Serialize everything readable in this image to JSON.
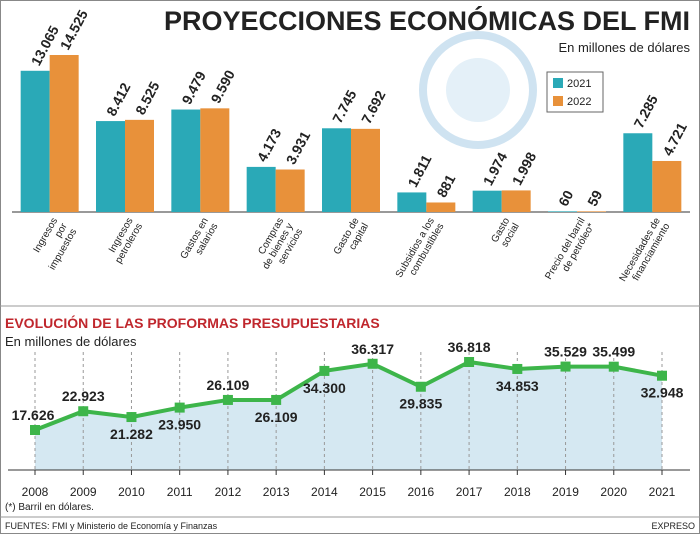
{
  "chart_data": [
    {
      "type": "bar",
      "title": "PROYECCIONES ECONÓMICAS DEL FMI",
      "subtitle": "En millones de dólares",
      "categories": [
        "Ingresos\npor\nimpuestos",
        "Ingresos\npetroleros",
        "Gastos en\nsalarios",
        "Compras\nde bienes y\nservicios",
        "Gasto de\ncapital",
        "Subsidios a los\ncombustibles",
        "Gasto\nsocial",
        "Precio del barril\nde petróleo*",
        "Necesidades de\nfinanciamiento"
      ],
      "series": [
        {
          "name": "2021",
          "color": "#2aa9b7",
          "values": [
            13065,
            8412,
            9479,
            4173,
            7745,
            1811,
            1974,
            60,
            7285
          ],
          "value_labels": [
            "13.065",
            "8.412",
            "9.479",
            "4.173",
            "7.745",
            "1.811",
            "1.974",
            "60",
            "7.285"
          ]
        },
        {
          "name": "2022",
          "color": "#e8913a",
          "values": [
            14525,
            8525,
            9590,
            3931,
            7692,
            881,
            1998,
            59,
            4721
          ],
          "value_labels": [
            "14.525",
            "8.525",
            "9.590",
            "3.931",
            "7.692",
            "881",
            "1.998",
            "59",
            "4.721"
          ]
        }
      ],
      "legend": "upper right"
    },
    {
      "type": "line",
      "title": "EVOLUCIÓN DE LAS PROFORMAS PRESUPUESTARIAS",
      "subtitle": "En millones de dólares",
      "categories": [
        "2008",
        "2009",
        "2010",
        "2011",
        "2012",
        "2013",
        "2014",
        "2015",
        "2016",
        "2017",
        "2018",
        "2019",
        "2020",
        "2021"
      ],
      "values": [
        17626,
        22923,
        21282,
        23950,
        26109,
        26109,
        34300,
        36317,
        29835,
        36818,
        34853,
        35529,
        35499,
        32948
      ],
      "value_labels": [
        "17.626",
        "22.923",
        "21.282",
        "23.950",
        "26.109",
        "26.109",
        "34.300",
        "36.317",
        "29.835",
        "36.818",
        "34.853",
        "35.529",
        "35.499",
        "32.948"
      ],
      "color": "#3db54a",
      "area_color": "#d5e8f2",
      "grid": true
    }
  ],
  "footnote": "(*) Barril en dólares.",
  "source": "FUENTES: FMI y Ministerio de Economía y Finanzas",
  "credit": "EXPRESO"
}
